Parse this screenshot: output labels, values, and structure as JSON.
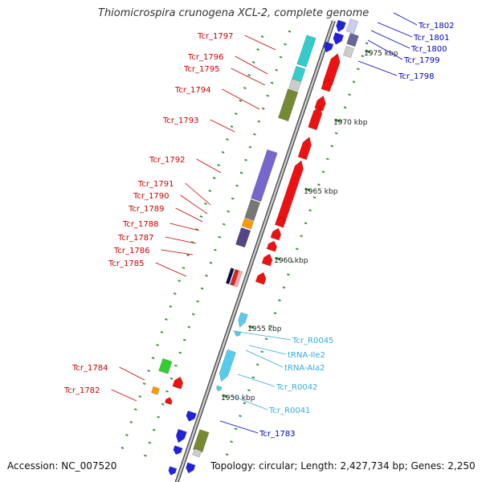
{
  "title": "Thiomicrospira crunogena XCL-2, complete genome",
  "footer": {
    "accession": "Accession: NC_007520",
    "topology": "Topology: circular; Length: 2,427,734 bp; Genes: 2,250"
  },
  "colors": {
    "red_label": "#cc0000",
    "blue_label": "#0000cc",
    "cyan_label": "#33aadd",
    "tick": "#339933",
    "backbone": "#888888"
  },
  "ruler": [
    "1975 kbp",
    "1970 kbp",
    "1965 kbp",
    "1960 kbp",
    "1955 kbp",
    "1950 kbp"
  ],
  "labels_left": [
    "Tcr_1797",
    "Tcr_1796",
    "Tcr_1795",
    "Tcr_1794",
    "Tcr_1793",
    "Tcr_1792",
    "Tcr_1791",
    "Tcr_1790",
    "Tcr_1789",
    "Tcr_1788",
    "Tcr_1787",
    "Tcr_1786",
    "Tcr_1785",
    "Tcr_1784",
    "Tcr_1782"
  ],
  "labels_right_blue": [
    "Tcr_1802",
    "Tcr_1801",
    "Tcr_1800",
    "Tcr_1799",
    "Tcr_1798",
    "Tcr_1783"
  ],
  "labels_right_cyan": [
    "Tcr_R0045",
    "tRNA-Ile2",
    "tRNA-Ala2",
    "Tcr_R0042",
    "Tcr_R0041"
  ]
}
